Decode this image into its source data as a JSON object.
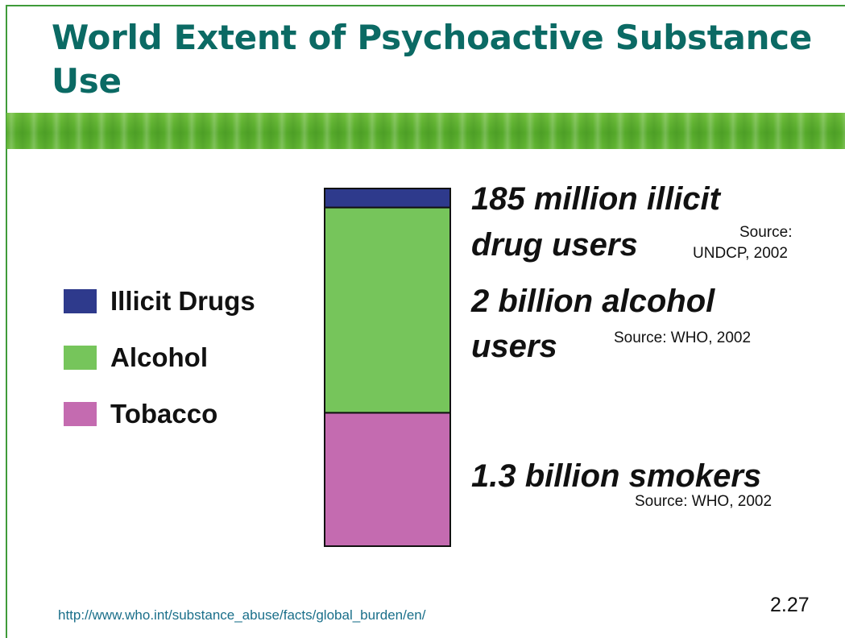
{
  "slide": {
    "title": "World Extent of Psychoactive Substance Use",
    "url": "http://www.who.int/substance_abuse/facts/global_burden/en/",
    "page_number": "2.27"
  },
  "chart_data": {
    "type": "bar",
    "stacked": true,
    "title": "",
    "xlabel": "",
    "ylabel": "",
    "grid": false,
    "legend_position": "left",
    "series": [
      {
        "name": "Tobacco",
        "value": 1.3,
        "unit": "billion",
        "color": "#c46bb0"
      },
      {
        "name": "Alcohol",
        "value": 2.0,
        "unit": "billion",
        "color": "#76c55b"
      },
      {
        "name": "Illicit Drugs",
        "value": 0.185,
        "unit": "billion",
        "color": "#2e3a8c"
      }
    ],
    "annotations": [
      {
        "line1": "185 million illicit",
        "line2": "drug users",
        "source_line1": "Source:",
        "source_line2": "UNDCP, 2002"
      },
      {
        "line1": "2 billion alcohol",
        "line2": "users",
        "source": "Source: WHO, 2002"
      },
      {
        "line1": "1.3 billion smokers",
        "source": "Source: WHO, 2002"
      }
    ]
  },
  "legend": {
    "items": [
      {
        "label": "Illicit Drugs",
        "color": "#2e3a8c"
      },
      {
        "label": "Alcohol",
        "color": "#76c55b"
      },
      {
        "label": "Tobacco",
        "color": "#c46bb0"
      }
    ]
  }
}
